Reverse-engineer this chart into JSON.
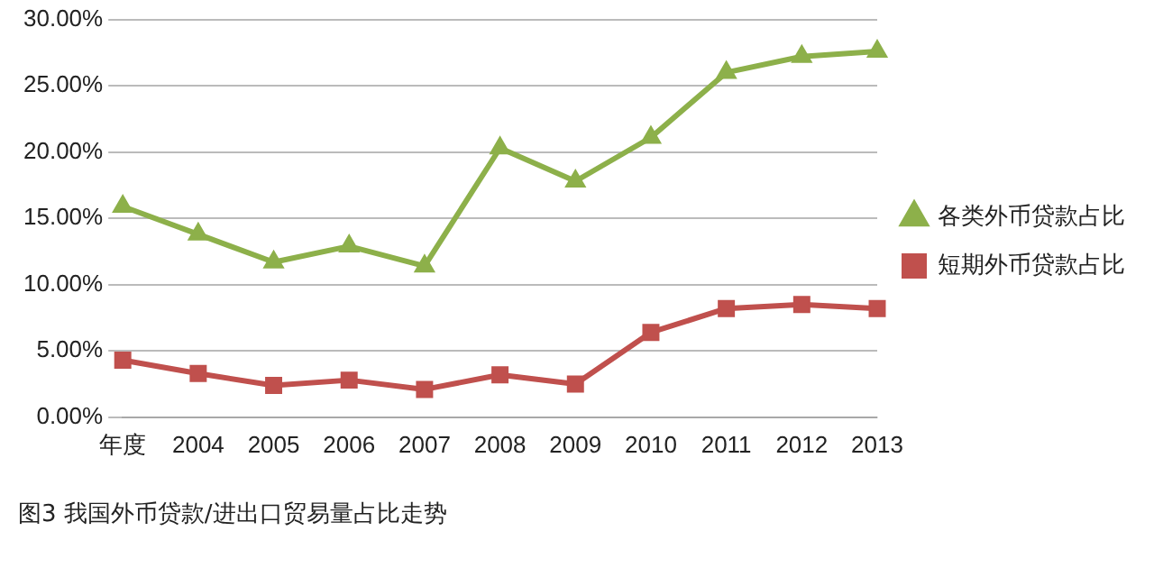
{
  "chart_data": {
    "type": "line",
    "categories": [
      "年度",
      "2004",
      "2005",
      "2006",
      "2007",
      "2008",
      "2009",
      "2010",
      "2011",
      "2012",
      "2013"
    ],
    "series": [
      {
        "name": "各类外币贷款占比",
        "color": "#8db04a",
        "marker": "triangle",
        "values": [
          15.9,
          13.8,
          11.7,
          12.9,
          11.4,
          20.3,
          17.8,
          21.1,
          26.0,
          27.2,
          27.6
        ]
      },
      {
        "name": "短期外币贷款占比",
        "color": "#c0504d",
        "marker": "square",
        "values": [
          4.3,
          3.3,
          2.4,
          2.8,
          2.1,
          3.2,
          2.5,
          6.4,
          8.2,
          8.5,
          8.2
        ]
      }
    ],
    "ylim": [
      0,
      30
    ],
    "yticks": [
      {
        "value": 0,
        "label": "0.00%"
      },
      {
        "value": 5,
        "label": "5.00%"
      },
      {
        "value": 10,
        "label": "10.00%"
      },
      {
        "value": 15,
        "label": "15.00%"
      },
      {
        "value": 20,
        "label": "20.00%"
      },
      {
        "value": 25,
        "label": "25.00%"
      },
      {
        "value": 30,
        "label": "30.00%"
      }
    ],
    "grid": "y",
    "legend": "right",
    "line_style": "solid",
    "annotations": [
      "图3   我国外币贷款/进出口贸易量占比走势"
    ]
  }
}
